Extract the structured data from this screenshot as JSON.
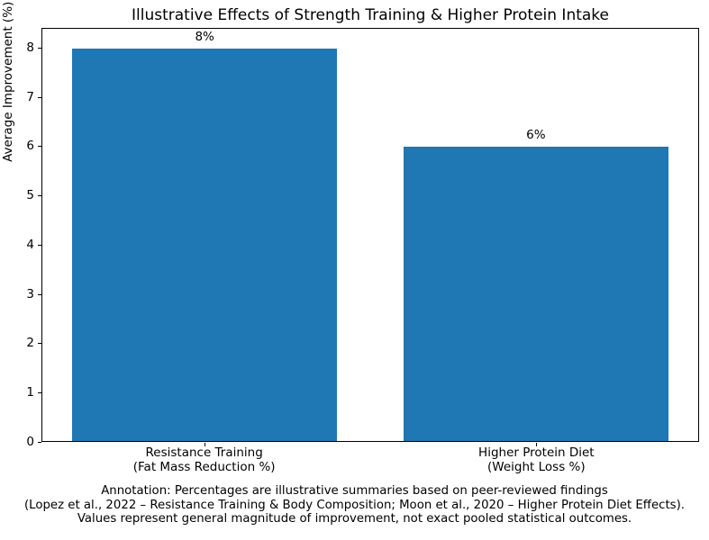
{
  "chart_data": {
    "type": "bar",
    "title": "Illustrative Effects of Strength Training & Higher Protein Intake",
    "xlabel": "",
    "ylabel": "Average Improvement (%)",
    "categories": [
      [
        "Resistance Training",
        "(Fat Mass Reduction %)"
      ],
      [
        "Higher Protein Diet",
        "(Weight Loss %)"
      ]
    ],
    "values": [
      8,
      6
    ],
    "bar_labels": [
      "8%",
      "6%"
    ],
    "yticks": [
      0,
      1,
      2,
      3,
      4,
      5,
      6,
      7,
      8
    ],
    "ylim": [
      0,
      8.4
    ],
    "bar_color": "#1f77b4",
    "grid": false,
    "legend_position": "none",
    "annotation_lines": [
      "Annotation: Percentages are illustrative summaries based on peer-reviewed findings",
      "(Lopez et al., 2022 – Resistance Training & Body Composition; Moon et al., 2020 – Higher Protein Diet Effects).",
      "Values represent general magnitude of improvement, not exact pooled statistical outcomes."
    ]
  }
}
